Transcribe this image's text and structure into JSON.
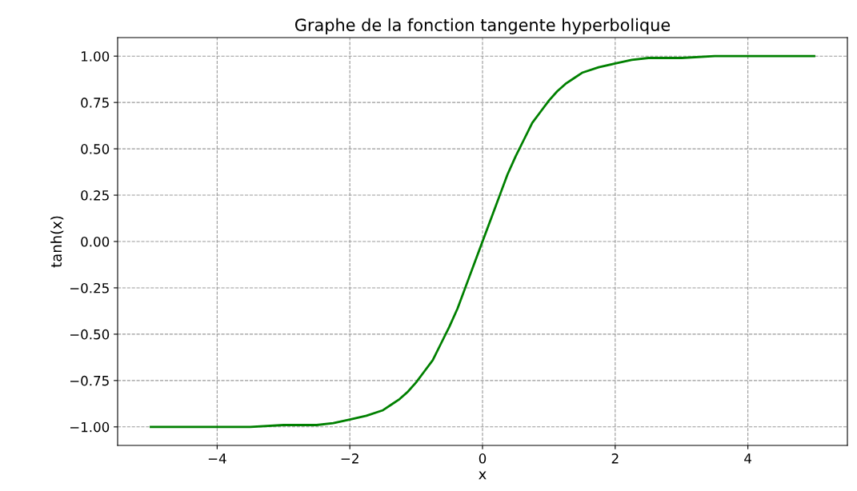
{
  "chart_data": {
    "type": "line",
    "title": "Graphe de la fonction tangente hyperbolique",
    "xlabel": "x",
    "ylabel": "tanh(x)",
    "x": [
      -5,
      -4,
      -3.5,
      -3,
      -2.5,
      -2.25,
      -2,
      -1.75,
      -1.5,
      -1.375,
      -1.25,
      -1.125,
      -1,
      -0.875,
      -0.75,
      -0.625,
      -0.5,
      -0.375,
      -0.25,
      -0.125,
      0,
      0.125,
      0.25,
      0.375,
      0.5,
      0.625,
      0.75,
      0.875,
      1,
      1.125,
      1.25,
      1.375,
      1.5,
      1.75,
      2,
      2.25,
      2.5,
      3,
      3.5,
      4,
      5
    ],
    "series": [
      {
        "color": "#008000",
        "values": [
          -1.0,
          -1.0,
          -1.0,
          -0.99,
          -0.99,
          -0.98,
          -0.96,
          -0.94,
          -0.91,
          -0.88,
          -0.85,
          -0.81,
          -0.76,
          -0.7,
          -0.64,
          -0.55,
          -0.46,
          -0.36,
          -0.24,
          -0.12,
          0.0,
          0.12,
          0.24,
          0.36,
          0.46,
          0.55,
          0.64,
          0.7,
          0.76,
          0.81,
          0.85,
          0.88,
          0.91,
          0.94,
          0.96,
          0.98,
          0.99,
          0.99,
          1.0,
          1.0,
          1.0
        ]
      }
    ],
    "xlim": [
      -5.5,
      5.5
    ],
    "xticks": [
      {
        "value": -4,
        "label": "−4"
      },
      {
        "value": -2,
        "label": "−2"
      },
      0,
      2,
      4
    ],
    "ylim": [
      -1.1,
      1.1
    ],
    "yticks": [
      {
        "value": -1,
        "label": "−1.00"
      },
      {
        "value": -0.75,
        "label": "−0.75"
      },
      {
        "value": -0.5,
        "label": "−0.50"
      },
      {
        "value": -0.25,
        "label": "−0.25"
      },
      {
        "value": 0,
        "label": "0.00"
      },
      {
        "value": 0.25,
        "label": "0.25"
      },
      {
        "value": 0.5,
        "label": "0.50"
      },
      {
        "value": 0.75,
        "label": "0.75"
      },
      {
        "value": 1,
        "label": "1.00"
      }
    ],
    "grid": true,
    "line_style": "solid",
    "marker": "none"
  }
}
